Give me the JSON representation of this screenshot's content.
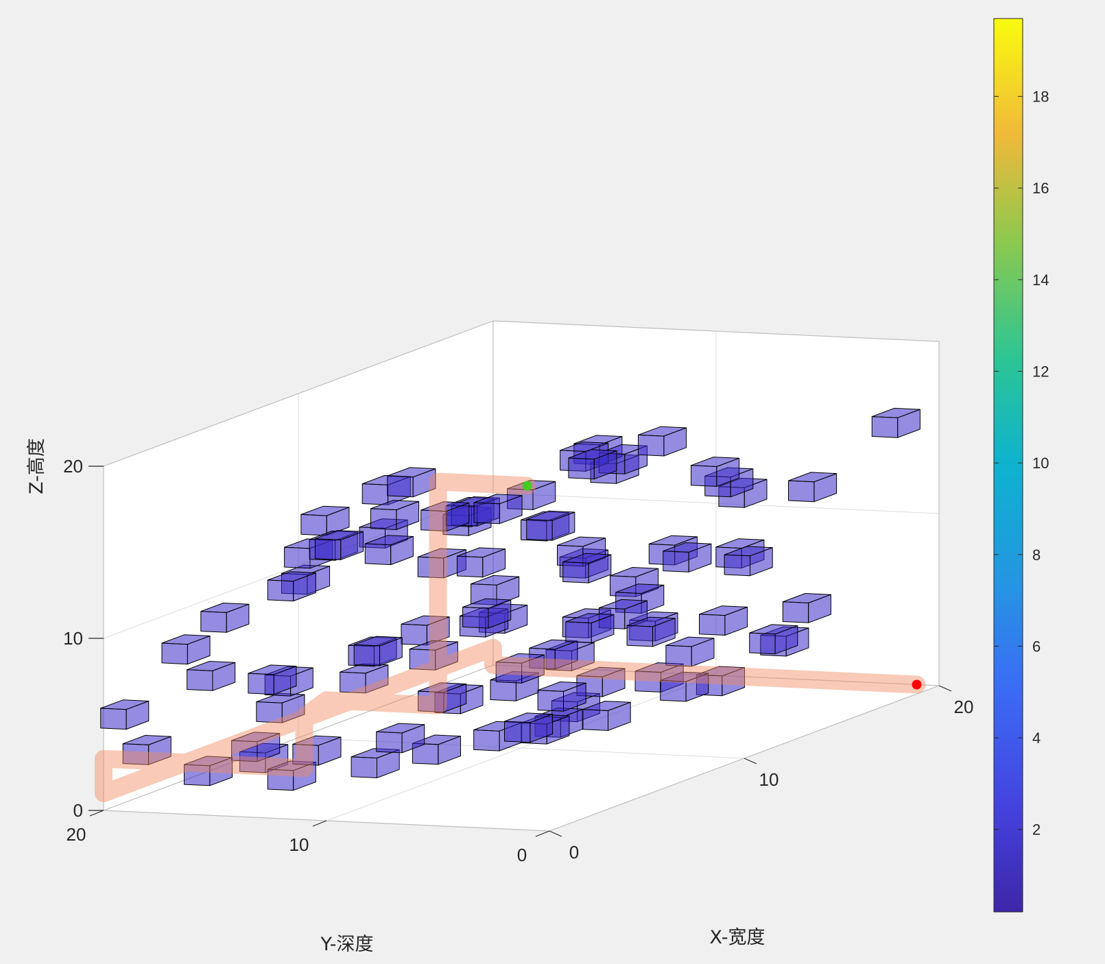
{
  "chart_data": {
    "type": "scatter",
    "subtype": "3d-voxel-obstacles-with-path",
    "title": "",
    "xlabel": "X-宽度",
    "ylabel": "Y-深度",
    "zlabel": "Z-高度",
    "xlim": [
      0,
      20
    ],
    "ylim": [
      0,
      20
    ],
    "zlim": [
      0,
      20
    ],
    "x_ticks": [
      "0",
      "10",
      "20"
    ],
    "y_ticks": [
      "0",
      "10",
      "20"
    ],
    "z_ticks": [
      "0",
      "10",
      "20"
    ],
    "grid": true,
    "view": "3d-isometric",
    "colorbar": {
      "colormap": "parula",
      "range": [
        0.2,
        19.7
      ],
      "ticks": [
        "2",
        "4",
        "6",
        "8",
        "10",
        "12",
        "14",
        "16",
        "18"
      ],
      "tick_values": [
        2,
        4,
        6,
        8,
        10,
        12,
        14,
        16,
        18
      ]
    },
    "obstacle_color": "#3d2ec8",
    "obstacle_edge_color": "#000000",
    "path_color": "#f08a60",
    "start_color": "#ff0000",
    "goal_color": "#44cc22",
    "obstacles": [
      [
        8,
        2,
        20
      ],
      [
        9,
        6,
        18
      ],
      [
        7,
        7,
        17
      ],
      [
        6,
        10,
        16
      ],
      [
        3,
        5,
        18
      ],
      [
        4,
        13,
        15
      ],
      [
        5,
        16,
        12
      ],
      [
        12,
        9,
        17
      ],
      [
        14,
        9,
        16
      ],
      [
        15,
        11,
        16
      ],
      [
        11,
        13,
        14
      ],
      [
        10,
        16,
        12
      ],
      [
        8,
        18,
        11
      ],
      [
        13,
        4,
        16
      ],
      [
        16,
        6,
        14
      ],
      [
        18,
        4,
        13
      ],
      [
        19,
        8,
        12
      ],
      [
        17,
        12,
        14
      ],
      [
        20,
        2,
        16
      ],
      [
        9,
        11,
        12
      ],
      [
        11,
        8,
        11
      ],
      [
        13,
        10,
        11
      ],
      [
        15,
        7,
        10
      ],
      [
        17,
        6,
        9
      ],
      [
        12,
        13,
        9
      ],
      [
        6,
        13,
        8
      ],
      [
        4,
        16,
        7
      ],
      [
        2,
        17,
        8
      ],
      [
        3,
        19,
        9
      ],
      [
        1,
        20,
        6
      ],
      [
        7,
        9,
        10
      ],
      [
        8,
        10,
        9
      ],
      [
        10,
        7,
        8
      ],
      [
        12,
        6,
        7
      ],
      [
        14,
        9,
        7
      ],
      [
        16,
        10,
        7
      ],
      [
        18,
        12,
        7
      ],
      [
        20,
        9,
        8
      ],
      [
        20,
        12,
        8
      ],
      [
        11,
        11,
        5
      ],
      [
        9,
        12,
        4
      ],
      [
        7,
        11,
        5
      ],
      [
        13,
        13,
        3
      ],
      [
        15,
        13,
        4
      ],
      [
        17,
        14,
        3
      ],
      [
        19,
        12,
        4
      ],
      [
        14,
        6,
        5
      ],
      [
        16,
        4,
        5
      ],
      [
        18,
        8,
        5
      ],
      [
        20,
        6,
        5
      ],
      [
        20,
        7,
        3
      ],
      [
        12,
        10,
        3
      ],
      [
        10,
        9,
        2
      ],
      [
        8,
        8,
        3
      ],
      [
        6,
        12,
        3
      ],
      [
        4,
        14,
        3
      ],
      [
        2,
        15,
        4
      ],
      [
        1,
        19,
        4
      ],
      [
        3,
        18,
        2
      ],
      [
        5,
        16,
        1
      ],
      [
        7,
        14,
        1
      ],
      [
        9,
        13,
        1
      ],
      [
        11,
        12,
        1
      ],
      [
        13,
        11,
        1
      ],
      [
        15,
        12,
        1
      ],
      [
        17,
        10,
        2
      ],
      [
        19,
        9,
        1
      ],
      [
        12,
        8,
        2
      ],
      [
        14,
        10,
        3
      ],
      [
        16,
        8,
        2
      ],
      [
        10,
        14,
        6
      ],
      [
        8,
        15,
        7
      ],
      [
        6,
        17,
        6
      ],
      [
        5,
        19,
        10
      ],
      [
        9,
        18,
        14
      ],
      [
        7,
        17,
        13
      ],
      [
        11,
        17,
        15
      ],
      [
        13,
        15,
        13
      ],
      [
        10,
        15,
        16
      ],
      [
        8,
        14,
        15
      ],
      [
        6,
        15,
        14
      ],
      [
        14,
        16,
        12
      ],
      [
        12,
        18,
        12
      ],
      [
        16,
        14,
        11
      ],
      [
        18,
        16,
        10
      ],
      [
        15,
        18,
        9
      ],
      [
        13,
        17,
        6
      ],
      [
        11,
        18,
        4
      ],
      [
        9,
        20,
        3
      ],
      [
        7,
        19,
        1
      ],
      [
        17,
        17,
        5
      ],
      [
        19,
        15,
        4
      ],
      [
        20,
        16,
        7
      ]
    ],
    "path": [
      [
        20,
        1,
        0
      ],
      [
        20,
        3,
        0
      ],
      [
        20,
        5,
        0
      ],
      [
        20,
        7,
        0
      ],
      [
        20,
        9,
        0
      ],
      [
        20,
        11,
        0
      ],
      [
        20,
        13,
        0
      ],
      [
        20,
        15,
        0
      ],
      [
        20,
        17,
        0
      ],
      [
        20,
        19,
        0
      ],
      [
        20,
        20,
        0
      ],
      [
        20,
        20,
        1
      ],
      [
        19,
        20,
        1
      ],
      [
        17,
        20,
        1
      ],
      [
        15,
        20,
        1
      ],
      [
        13,
        20,
        1
      ],
      [
        11,
        20,
        1
      ],
      [
        9,
        20,
        1
      ],
      [
        7,
        20,
        1
      ],
      [
        5,
        20,
        1
      ],
      [
        3,
        20,
        1
      ],
      [
        1,
        20,
        1
      ],
      [
        0,
        20,
        1
      ],
      [
        0,
        20,
        3
      ],
      [
        0,
        18,
        3
      ],
      [
        0,
        16,
        3
      ],
      [
        0,
        14,
        3
      ],
      [
        0,
        12,
        3
      ],
      [
        0,
        11,
        3
      ],
      [
        0,
        11,
        4
      ],
      [
        0,
        11,
        6
      ],
      [
        0,
        10,
        7
      ],
      [
        0,
        8,
        7
      ],
      [
        0,
        6,
        7
      ],
      [
        0,
        5,
        7
      ],
      [
        0,
        5,
        9
      ],
      [
        0,
        5,
        11
      ],
      [
        0,
        5,
        13
      ],
      [
        0,
        5,
        15
      ],
      [
        0,
        5,
        17
      ],
      [
        0,
        5,
        19
      ],
      [
        0,
        5,
        20
      ],
      [
        0,
        3,
        20
      ],
      [
        0,
        1,
        20
      ]
    ],
    "start": [
      20,
      1,
      0
    ],
    "goal": [
      0,
      1,
      20
    ]
  }
}
